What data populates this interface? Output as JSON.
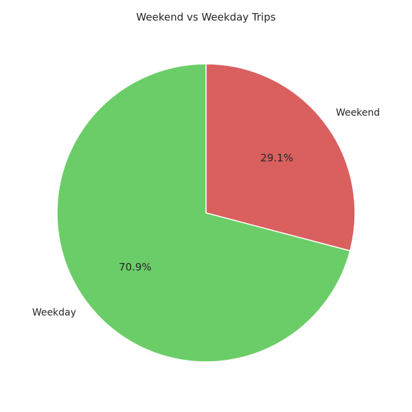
{
  "chart_data": {
    "type": "pie",
    "title": "Weekend vs Weekday Trips",
    "categories": [
      "Weekend",
      "Weekday"
    ],
    "values": [
      29.1,
      70.9
    ],
    "percent_labels": [
      "29.1%",
      "70.9%"
    ],
    "colors": [
      "#d9605f",
      "#6bcd67"
    ],
    "start_angle_deg": 90,
    "direction": "clockwise",
    "legend": "none"
  }
}
